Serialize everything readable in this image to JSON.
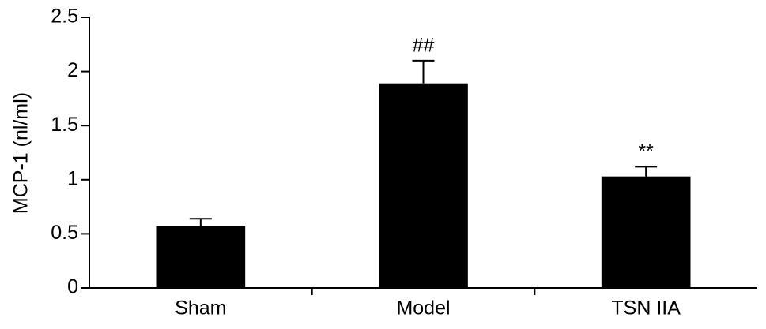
{
  "chart_data": {
    "type": "bar",
    "ylabel": "MCP-1 (nl/ml)",
    "categories": [
      "Sham",
      "Model",
      "TSN IIA"
    ],
    "values": [
      0.57,
      1.89,
      1.03
    ],
    "errors": [
      0.07,
      0.21,
      0.09
    ],
    "annotations": [
      null,
      "##",
      "**"
    ],
    "color": "#000000",
    "ylim": [
      0,
      2.5
    ],
    "yticks": [
      0,
      0.5,
      1,
      1.5,
      2,
      2.5
    ],
    "grid": false
  }
}
